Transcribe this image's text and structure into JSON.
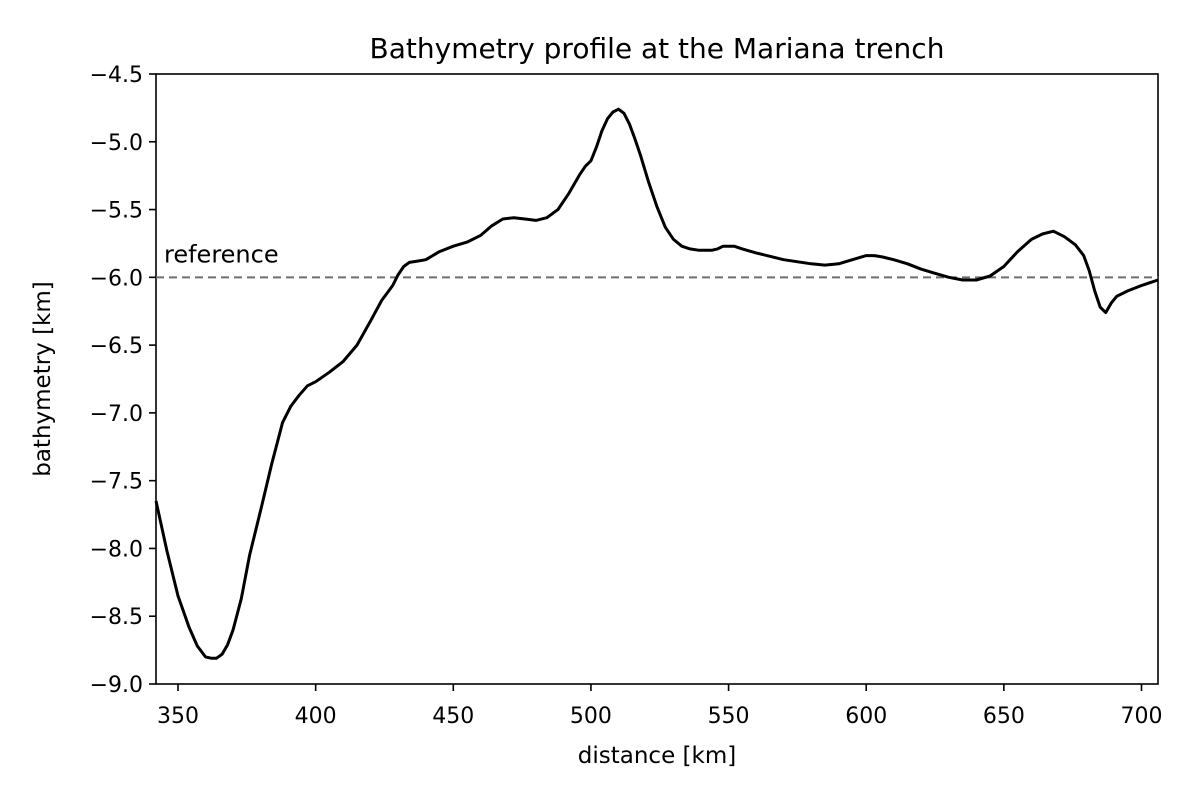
{
  "chart_data": {
    "type": "line",
    "title": "Bathymetry profile at the Mariana trench",
    "xlabel": "distance [km]",
    "ylabel": "bathymetry [km]",
    "xlim": [
      342,
      706
    ],
    "ylim": [
      -9.0,
      -4.5
    ],
    "xticks": [
      350,
      400,
      450,
      500,
      550,
      600,
      650,
      700
    ],
    "xtick_labels": [
      "350",
      "400",
      "450",
      "500",
      "550",
      "600",
      "650",
      "700"
    ],
    "yticks": [
      -4.5,
      -5.0,
      -5.5,
      -6.0,
      -6.5,
      -7.0,
      -7.5,
      -8.0,
      -8.5,
      -9.0
    ],
    "ytick_labels": [
      "−4.5",
      "−5.0",
      "−5.5",
      "−6.0",
      "−6.5",
      "−7.0",
      "−7.5",
      "−8.0",
      "−8.5",
      "−9.0"
    ],
    "grid": false,
    "reference": {
      "label": "reference",
      "y": -6.0,
      "color": "#6e6e6e",
      "style": "dashed"
    },
    "series": [
      {
        "color": "#000000",
        "x": [
          342,
          346,
          350,
          354,
          357,
          360,
          362,
          364,
          366,
          368,
          370,
          373,
          376,
          380,
          384,
          388,
          391,
          394,
          397,
          400,
          405,
          410,
          415,
          420,
          424,
          428,
          430,
          432,
          434,
          437,
          440,
          445,
          450,
          455,
          460,
          464,
          468,
          472,
          476,
          480,
          484,
          488,
          492,
          496,
          498,
          500,
          502,
          504,
          506,
          508,
          510,
          512,
          514,
          516,
          518,
          521,
          524,
          527,
          530,
          533,
          536,
          539,
          542,
          544,
          546,
          548,
          550,
          552,
          555,
          560,
          570,
          580,
          585,
          590,
          595,
          600,
          603,
          606,
          610,
          615,
          620,
          625,
          630,
          635,
          640,
          645,
          650,
          655,
          660,
          664,
          668,
          672,
          676,
          679,
          681,
          683,
          685,
          687,
          689,
          691,
          693,
          695,
          700,
          706
        ],
        "y": [
          -7.65,
          -8.02,
          -8.35,
          -8.58,
          -8.72,
          -8.8,
          -8.81,
          -8.81,
          -8.78,
          -8.71,
          -8.6,
          -8.37,
          -8.05,
          -7.72,
          -7.38,
          -7.07,
          -6.95,
          -6.87,
          -6.8,
          -6.77,
          -6.7,
          -6.62,
          -6.5,
          -6.32,
          -6.17,
          -6.06,
          -5.98,
          -5.92,
          -5.89,
          -5.88,
          -5.87,
          -5.81,
          -5.77,
          -5.74,
          -5.69,
          -5.62,
          -5.57,
          -5.56,
          -5.57,
          -5.58,
          -5.56,
          -5.5,
          -5.38,
          -5.24,
          -5.18,
          -5.14,
          -5.04,
          -4.92,
          -4.83,
          -4.78,
          -4.76,
          -4.79,
          -4.87,
          -4.98,
          -5.1,
          -5.3,
          -5.48,
          -5.63,
          -5.72,
          -5.77,
          -5.79,
          -5.8,
          -5.8,
          -5.8,
          -5.79,
          -5.77,
          -5.77,
          -5.77,
          -5.79,
          -5.82,
          -5.87,
          -5.9,
          -5.91,
          -5.9,
          -5.87,
          -5.84,
          -5.84,
          -5.85,
          -5.87,
          -5.9,
          -5.94,
          -5.97,
          -6.0,
          -6.02,
          -6.02,
          -5.99,
          -5.92,
          -5.81,
          -5.72,
          -5.68,
          -5.66,
          -5.7,
          -5.76,
          -5.84,
          -5.95,
          -6.1,
          -6.22,
          -6.26,
          -6.19,
          -6.14,
          -6.12,
          -6.1,
          -6.06,
          -6.02
        ]
      }
    ]
  }
}
